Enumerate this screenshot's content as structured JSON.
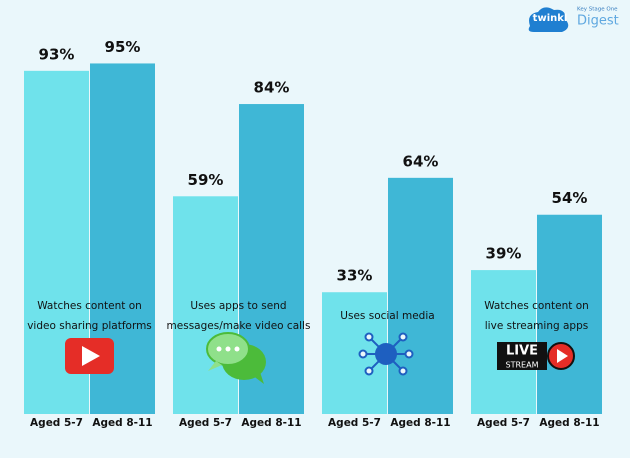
{
  "chart_data": {
    "type": "bar",
    "categories": [
      "Watches content on\nvideo sharing platforms",
      "Uses apps to send\nmessages/make video calls",
      "Uses social media",
      "Watches content on\nlive streaming apps"
    ],
    "series": [
      {
        "name": "Aged 5-7",
        "color": "#6fe2eb",
        "values": [
          93,
          59,
          33,
          39
        ],
        "value_labels": [
          "93%",
          "59%",
          "33%",
          "39%"
        ]
      },
      {
        "name": "Aged 8-11",
        "color": "#3fb7d6",
        "values": [
          95,
          84,
          64,
          54
        ],
        "value_labels": [
          "95%",
          "84%",
          "64%",
          "54%"
        ]
      }
    ]
  },
  "logo": {
    "brand": "twinkl",
    "line1": "Key Stage One",
    "line2": "Digest"
  },
  "badge": {
    "line1": "LIVE",
    "line2": "STREAM"
  }
}
